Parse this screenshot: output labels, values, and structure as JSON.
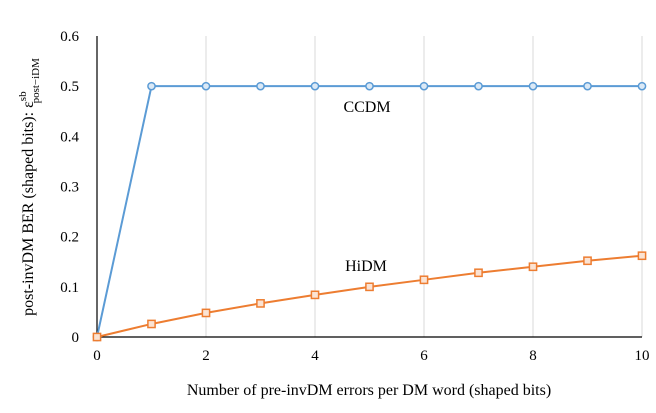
{
  "chart_data": {
    "type": "line",
    "xlabel": "Number of pre-invDM errors per DM word (shaped bits)",
    "ylabel": {
      "text": "post-invDM BER (shaped bits): ",
      "symbol": "ε",
      "superscript": "sb",
      "subscript": "post−iDM"
    },
    "xlim": [
      0,
      10
    ],
    "ylim": [
      0,
      0.6
    ],
    "x_ticks": [
      "0",
      "2",
      "4",
      "6",
      "8",
      "10"
    ],
    "y_ticks": [
      "0",
      "0.1",
      "0.2",
      "0.3",
      "0.4",
      "0.5",
      "0.6"
    ],
    "grid": "vertical",
    "x": [
      0,
      1,
      2,
      3,
      4,
      5,
      6,
      7,
      8,
      9,
      10
    ],
    "series": [
      {
        "name": "CCDM",
        "color": "#5b9bd5",
        "marker": "circle",
        "values": [
          0,
          0.5,
          0.5,
          0.5,
          0.5,
          0.5,
          0.5,
          0.5,
          0.5,
          0.5,
          0.5
        ]
      },
      {
        "name": "HiDM",
        "color": "#ed7d31",
        "marker": "square",
        "values": [
          0,
          0.026,
          0.048,
          0.067,
          0.084,
          0.1,
          0.114,
          0.128,
          0.14,
          0.152,
          0.162
        ]
      }
    ]
  }
}
